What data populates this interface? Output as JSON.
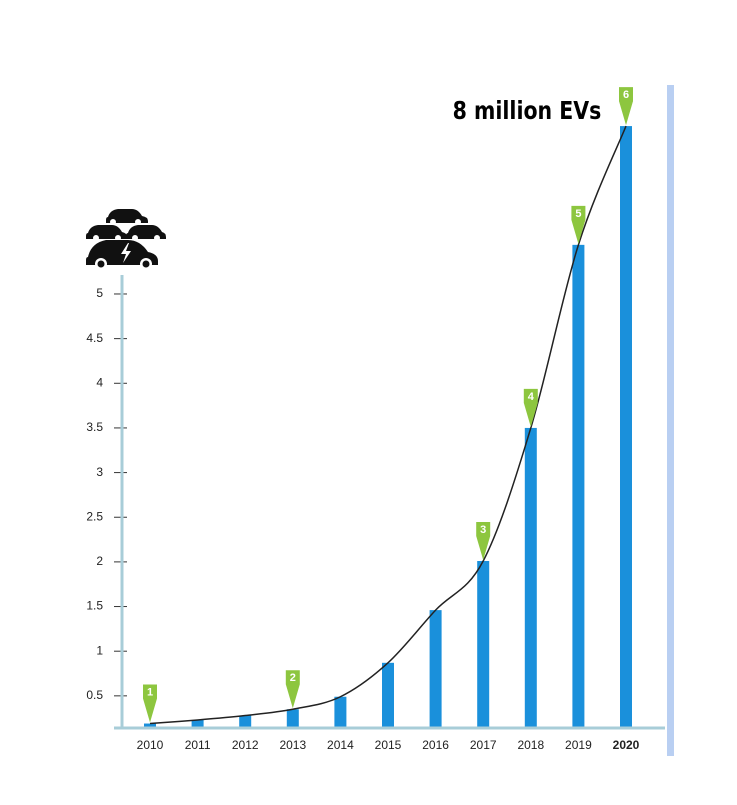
{
  "chart_data": {
    "type": "bar",
    "annotation": "8 million EVs",
    "categories": [
      "2010",
      "2011",
      "2012",
      "2013",
      "2014",
      "2015",
      "2016",
      "2017",
      "2018",
      "2019",
      "2020"
    ],
    "values": [
      0.19,
      0.23,
      0.28,
      0.35,
      0.49,
      0.87,
      1.46,
      2.01,
      3.5,
      5.55,
      6.88
    ],
    "color": "#1a90db",
    "line_color": "#222222",
    "marker_color": "#8dc63f",
    "ylim": [
      0.14,
      7.2
    ],
    "yticks": [
      0.5,
      1,
      1.5,
      2,
      2.5,
      3,
      3.5,
      4,
      4.5,
      5
    ],
    "bold_last_category": true,
    "milestones": [
      {
        "label": "1",
        "category": "2010"
      },
      {
        "label": "2",
        "category": "2013"
      },
      {
        "label": "3",
        "category": "2017"
      },
      {
        "label": "4",
        "category": "2018"
      },
      {
        "label": "5",
        "category": "2019"
      },
      {
        "label": "6",
        "category": "2020"
      }
    ]
  }
}
